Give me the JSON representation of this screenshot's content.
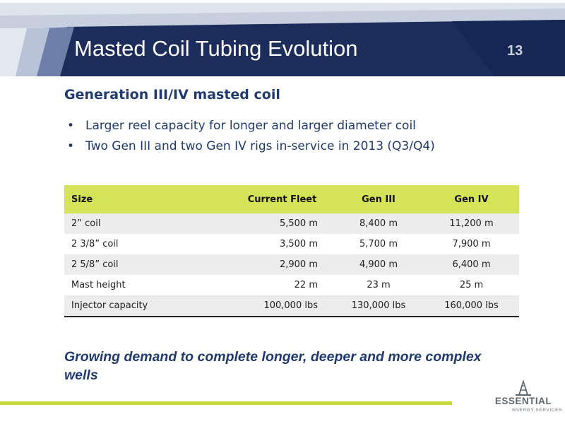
{
  "header": {
    "title": "Masted Coil Tubing Evolution",
    "slide_number": "13"
  },
  "section": {
    "heading": "Generation III/IV masted coil",
    "bullets": [
      "Larger reel capacity for longer and larger diameter coil",
      "Two Gen III and two Gen IV rigs in-service in 2013 (Q3/Q4)"
    ]
  },
  "table": {
    "headers": [
      "Size",
      "Current Fleet",
      "Gen III",
      "Gen IV"
    ],
    "rows": [
      [
        "2” coil",
        "5,500 m",
        "8,400 m",
        "11,200 m"
      ],
      [
        "2 3/8” coil",
        "3,500 m",
        "5,700 m",
        "7,900 m"
      ],
      [
        "2 5/8” coil",
        "2,900 m",
        "4,900 m",
        "6,400 m"
      ],
      [
        "Mast height",
        "22 m",
        "23 m",
        "25 m"
      ],
      [
        "Injector capacity",
        "100,000 lbs",
        "130,000 lbs",
        "160,000 lbs"
      ]
    ]
  },
  "closing": "Growing demand  to complete longer, deeper and more complex wells",
  "logo": {
    "name": "ESSENTIAL",
    "tagline": "ENERGY SERVICES"
  },
  "colors": {
    "navy": "#1f3a6e",
    "header_dark": "#1c2d5c",
    "accent_green": "#c8d83a",
    "table_header": "#d5e356"
  }
}
